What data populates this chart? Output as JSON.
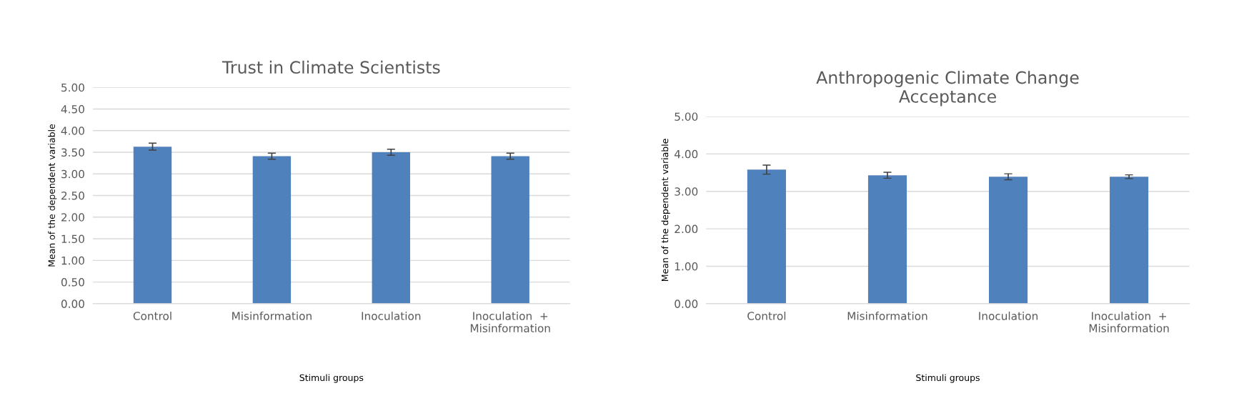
{
  "chart_data": [
    {
      "type": "bar",
      "title": "Trust in Climate Scientists",
      "xlabel": "Stimuli groups",
      "ylabel": "Mean of the dependent variable",
      "categories": [
        "Control",
        "Misinformation",
        "Inoculation",
        "Inoculation  +\nMisinformation"
      ],
      "series": [
        {
          "color": "#4f81bd",
          "values": [
            3.63,
            3.41,
            3.5,
            3.41
          ],
          "errors": [
            0.08,
            0.07,
            0.07,
            0.07
          ]
        }
      ],
      "ylim": [
        0,
        5
      ],
      "yticks": [
        {
          "value": 0,
          "label": "0.00"
        },
        {
          "value": 0.5,
          "label": "0.50"
        },
        {
          "value": 1,
          "label": "1.00"
        },
        {
          "value": 1.5,
          "label": "1.50"
        },
        {
          "value": 2,
          "label": "2.00"
        },
        {
          "value": 2.5,
          "label": "2.50"
        },
        {
          "value": 3,
          "label": "3.00"
        },
        {
          "value": 3.5,
          "label": "3.50"
        },
        {
          "value": 4,
          "label": "4.00"
        },
        {
          "value": 4.5,
          "label": "4.50"
        },
        {
          "value": 5,
          "label": "5.00"
        }
      ],
      "grid": "y"
    },
    {
      "type": "bar",
      "title": "Anthropogenic Climate Change\nAcceptance",
      "xlabel": "Stimuli groups",
      "ylabel": "Mean of the dependent variable",
      "categories": [
        "Control",
        "Misinformation",
        "Inoculation",
        "Inoculation  +\nMisinformation"
      ],
      "series": [
        {
          "color": "#4f81bd",
          "values": [
            3.58,
            3.43,
            3.39,
            3.39
          ],
          "errors": [
            0.12,
            0.08,
            0.08,
            0.05
          ]
        }
      ],
      "ylim": [
        0,
        5
      ],
      "yticks": [
        {
          "value": 0,
          "label": "0.00"
        },
        {
          "value": 1,
          "label": "1.00"
        },
        {
          "value": 2,
          "label": "2.00"
        },
        {
          "value": 3,
          "label": "3.00"
        },
        {
          "value": 4,
          "label": "4.00"
        },
        {
          "value": 5,
          "label": "5.00"
        }
      ],
      "grid": "y"
    }
  ]
}
